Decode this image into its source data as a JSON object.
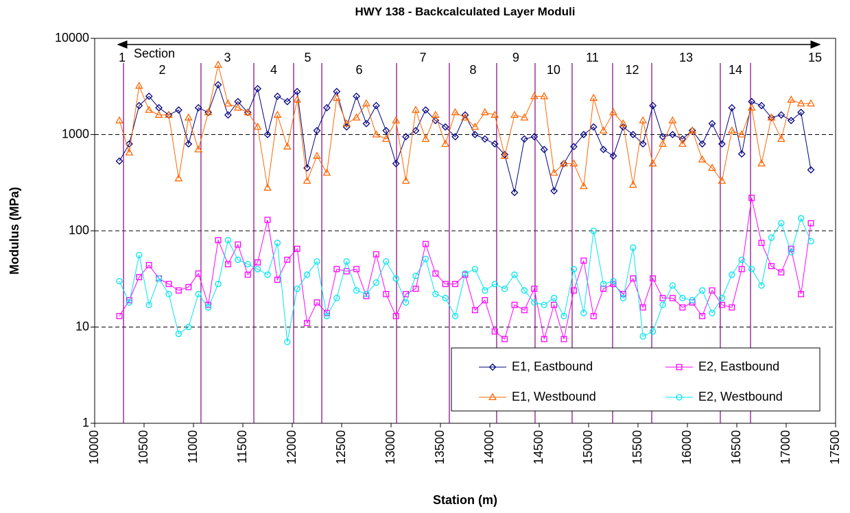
{
  "chart_data": {
    "type": "line",
    "title": "HWY 138 - Backcalculated Layer Moduli",
    "x_label": "Station (m)",
    "y_label": "Modulus (MPa)",
    "log_y": true,
    "grid": "y",
    "legend": "lower right",
    "xlim": [
      10000,
      17500
    ],
    "xticks": [
      10000,
      10500,
      11000,
      11500,
      12000,
      12500,
      13000,
      13500,
      14000,
      14500,
      15000,
      15500,
      16000,
      16500,
      17000,
      17500
    ],
    "ylim": [
      1,
      10000
    ],
    "yticks": [
      1,
      10,
      100,
      1000,
      10000
    ],
    "section_title": "Section",
    "section_labels": [
      "1",
      "2",
      "3",
      "4",
      "5",
      "6",
      "7",
      "8",
      "9",
      "10",
      "11",
      "12",
      "13",
      "14",
      "15"
    ],
    "section_boundaries": [
      10292,
      11076,
      11611,
      12014,
      12299,
      13056,
      13590,
      14069,
      14458,
      14833,
      15243,
      15639,
      16333,
      16639
    ],
    "section_color": "#800080",
    "x": [
      10250,
      10350,
      10450,
      10550,
      10650,
      10750,
      10850,
      10950,
      11050,
      11150,
      11250,
      11350,
      11450,
      11550,
      11650,
      11750,
      11850,
      11950,
      12050,
      12150,
      12250,
      12350,
      12450,
      12550,
      12650,
      12750,
      12850,
      12950,
      13050,
      13150,
      13250,
      13350,
      13450,
      13550,
      13650,
      13750,
      13850,
      13950,
      14050,
      14150,
      14250,
      14350,
      14450,
      14550,
      14650,
      14750,
      14850,
      14950,
      15050,
      15150,
      15250,
      15350,
      15450,
      15550,
      15650,
      15750,
      15850,
      15950,
      16050,
      16150,
      16250,
      16350,
      16450,
      16550,
      16650,
      16750,
      16850,
      16950,
      17050,
      17150,
      17250
    ],
    "series": [
      {
        "name": "E1, Eastbound",
        "color": "#000080",
        "marker": "diamond",
        "values": [
          530,
          800,
          2000,
          2500,
          1900,
          1600,
          1800,
          800,
          1900,
          1700,
          3300,
          1600,
          2200,
          1700,
          3000,
          1000,
          2500,
          2200,
          2800,
          450,
          1100,
          1900,
          2800,
          1200,
          2500,
          1300,
          2000,
          1100,
          500,
          950,
          1100,
          1800,
          1400,
          1200,
          950,
          1600,
          1000,
          900,
          800,
          620,
          250,
          900,
          950,
          700,
          260,
          500,
          750,
          1000,
          1200,
          700,
          600,
          1200,
          1000,
          800,
          2000,
          950,
          1000,
          900,
          1100,
          800,
          1300,
          800,
          1900,
          630,
          2200,
          2000,
          1500,
          1600,
          1400,
          1700,
          430
        ]
      },
      {
        "name": "E2, Eastbound",
        "color": "#FF00FF",
        "marker": "square",
        "values": [
          13,
          19,
          33,
          44,
          32,
          28,
          24,
          26,
          36,
          17,
          80,
          45,
          72,
          35,
          47,
          130,
          31,
          50,
          65,
          11,
          18,
          14,
          40,
          38,
          40,
          21,
          57,
          22,
          13,
          22,
          25,
          73,
          36,
          28,
          28,
          35,
          15,
          19,
          9,
          7.5,
          17,
          15,
          25,
          7.5,
          17,
          7.5,
          24,
          49,
          13,
          25,
          28,
          22,
          32,
          16,
          32,
          20,
          20,
          16,
          18,
          13,
          24,
          17,
          16,
          40,
          220,
          75,
          43,
          37,
          65,
          22,
          120
        ]
      },
      {
        "name": "E1, Westbound",
        "color": "#FF6600",
        "marker": "triangle",
        "values": [
          1400,
          650,
          3200,
          1800,
          1600,
          1600,
          350,
          1500,
          700,
          1700,
          5300,
          2100,
          1900,
          1700,
          1200,
          280,
          1600,
          750,
          2300,
          330,
          600,
          400,
          2400,
          1300,
          1500,
          2100,
          1000,
          900,
          1400,
          330,
          1800,
          900,
          1600,
          800,
          1700,
          1500,
          1200,
          1700,
          1600,
          600,
          1600,
          1500,
          2500,
          2500,
          400,
          500,
          500,
          290,
          2400,
          1100,
          1700,
          1300,
          300,
          1400,
          500,
          800,
          1400,
          800,
          1100,
          550,
          450,
          330,
          1100,
          1000,
          1900,
          500,
          1500,
          900,
          2300,
          2100,
          2100
        ]
      },
      {
        "name": "E2, Westbound",
        "color": "#00E5EE",
        "marker": "circle",
        "values": [
          30,
          18,
          56,
          17,
          32,
          22,
          8.5,
          10,
          22,
          16,
          28,
          80,
          50,
          45,
          40,
          35,
          75,
          7,
          25,
          35,
          48,
          13,
          20,
          48,
          24,
          22,
          29,
          48,
          32,
          18,
          34,
          51,
          22,
          20,
          13,
          36,
          40,
          24,
          28,
          25,
          35,
          24,
          18,
          17,
          20,
          13,
          40,
          14,
          100,
          28,
          30,
          20,
          67,
          8,
          9,
          17,
          27,
          20,
          19,
          24,
          14,
          20,
          35,
          50,
          40,
          27,
          85,
          120,
          60,
          135,
          78
        ]
      }
    ]
  }
}
